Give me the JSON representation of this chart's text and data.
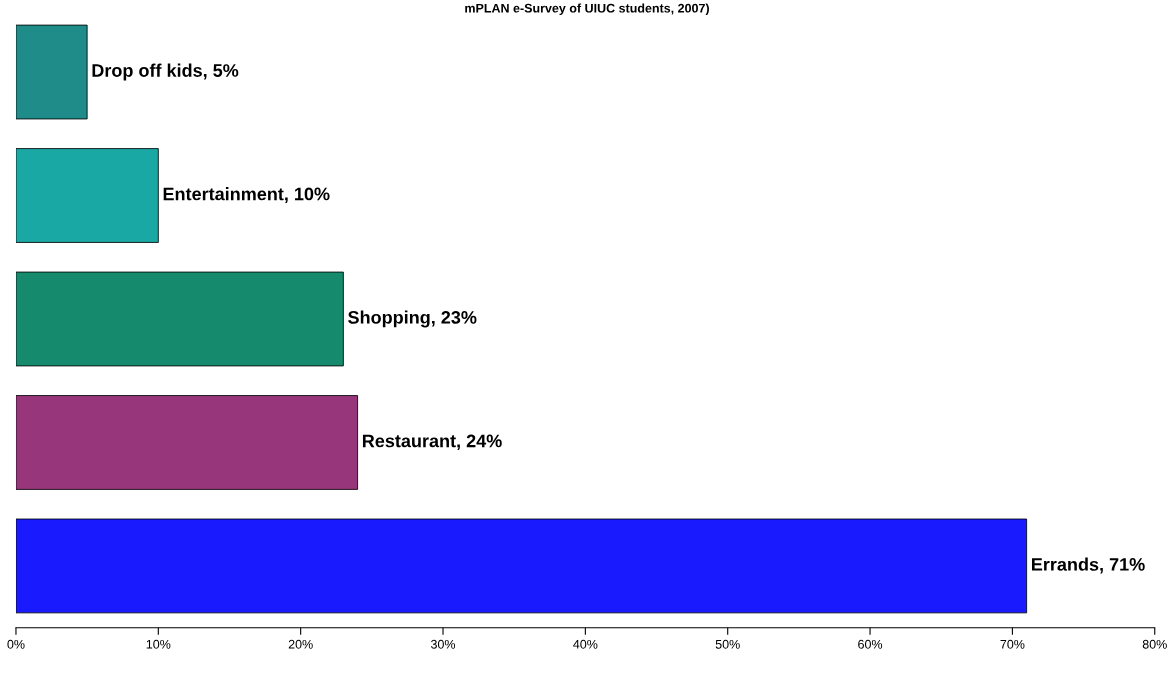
{
  "chart_data": {
    "type": "bar",
    "orientation": "horizontal",
    "title": "mPLAN e-Survey of UIUC students, 2007)",
    "categories": [
      null,
      null,
      null,
      null,
      null
    ],
    "values": [
      5,
      10,
      23,
      24,
      71
    ],
    "colors": [
      "#1f8c89",
      "#1aa8a4",
      "#168a6c",
      "#98367c",
      "#1a1aff"
    ],
    "value_labels": [
      "Drop off kids, 5%",
      "Entertainment, 10%",
      "Shopping, 23%",
      "Restaurant, 24%",
      "Errands, 71%"
    ],
    "xlim": [
      0,
      80
    ],
    "xticks": [
      {
        "value": 0,
        "label": "0%"
      },
      {
        "value": 10,
        "label": "10%"
      },
      {
        "value": 20,
        "label": "20%"
      },
      {
        "value": 30,
        "label": "30%"
      },
      {
        "value": 40,
        "label": "40%"
      },
      {
        "value": 50,
        "label": "50%"
      },
      {
        "value": 60,
        "label": "60%"
      },
      {
        "value": 70,
        "label": "70%"
      },
      {
        "value": 80,
        "label": "80%"
      }
    ],
    "grid": false,
    "legend": false
  }
}
